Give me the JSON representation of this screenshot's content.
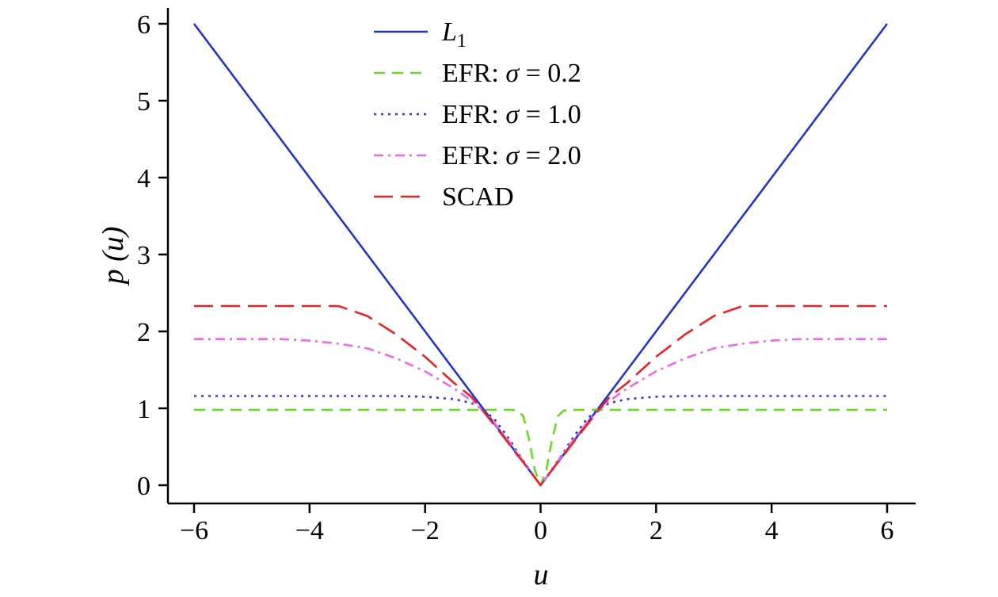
{
  "chart_data": {
    "type": "line",
    "xlabel": "u",
    "ylabel": "p (u)",
    "xlim": [
      -6.45,
      6.45
    ],
    "ylim": [
      -0.25,
      6.25
    ],
    "xticks": [
      -6,
      -4,
      -2,
      0,
      2,
      4,
      6
    ],
    "yticks": [
      0,
      1,
      2,
      3,
      4,
      5,
      6
    ],
    "xtick_labels": [
      "−6",
      "−4",
      "−2",
      "0",
      "2",
      "4",
      "6"
    ],
    "ytick_labels": [
      "0",
      "1",
      "2",
      "3",
      "4",
      "5",
      "6"
    ],
    "grid": false,
    "legend_position": "top-center",
    "x": [
      -6.0,
      -5.5,
      -5.0,
      -4.5,
      -4.0,
      -3.5,
      -3.0,
      -2.5,
      -2.0,
      -1.5,
      -1.2,
      -1.0,
      -0.8,
      -0.6,
      -0.5,
      -0.4,
      -0.3,
      -0.2,
      -0.1,
      0.0,
      0.1,
      0.2,
      0.3,
      0.4,
      0.5,
      0.6,
      0.8,
      1.0,
      1.2,
      1.5,
      2.0,
      2.5,
      3.0,
      3.5,
      4.0,
      4.5,
      5.0,
      5.5,
      6.0
    ],
    "series": [
      {
        "name": "L1",
        "legend_label": "L",
        "legend_sub": "1",
        "color": "#2233cc",
        "style": "solid",
        "values": [
          6.0,
          5.5,
          5.0,
          4.5,
          4.0,
          3.5,
          3.0,
          2.5,
          2.0,
          1.5,
          1.2,
          1.0,
          0.8,
          0.6,
          0.5,
          0.4,
          0.3,
          0.2,
          0.1,
          0.0,
          0.1,
          0.2,
          0.3,
          0.4,
          0.5,
          0.6,
          0.8,
          1.0,
          1.2,
          1.5,
          2.0,
          2.5,
          3.0,
          3.5,
          4.0,
          4.5,
          5.0,
          5.5,
          6.0
        ]
      },
      {
        "name": "EFR: σ = 0.2",
        "legend_prefix": "EFR: ",
        "legend_sigma": "σ",
        "legend_suffix": " = 0.2",
        "color": "#66dd22",
        "style": "dashed",
        "values": [
          0.98,
          0.98,
          0.98,
          0.98,
          0.98,
          0.98,
          0.98,
          0.98,
          0.98,
          0.98,
          0.98,
          0.98,
          0.98,
          0.98,
          0.98,
          0.97,
          0.9,
          0.6,
          0.2,
          0.0,
          0.2,
          0.6,
          0.9,
          0.97,
          0.98,
          0.98,
          0.98,
          0.98,
          0.98,
          0.98,
          0.98,
          0.98,
          0.98,
          0.98,
          0.98,
          0.98,
          0.98,
          0.98,
          0.98
        ]
      },
      {
        "name": "EFR: σ = 1.0",
        "legend_prefix": "EFR: ",
        "legend_sigma": "σ",
        "legend_suffix": " = 1.0",
        "color": "#3333ee",
        "style": "dotted",
        "values": [
          1.16,
          1.16,
          1.16,
          1.16,
          1.16,
          1.16,
          1.16,
          1.16,
          1.15,
          1.12,
          1.07,
          0.99,
          0.86,
          0.66,
          0.55,
          0.43,
          0.32,
          0.21,
          0.1,
          0.0,
          0.1,
          0.21,
          0.32,
          0.43,
          0.55,
          0.66,
          0.86,
          0.99,
          1.07,
          1.12,
          1.15,
          1.16,
          1.16,
          1.16,
          1.16,
          1.16,
          1.16,
          1.16,
          1.16
        ]
      },
      {
        "name": "EFR: σ = 2.0",
        "legend_prefix": "EFR: ",
        "legend_sigma": "σ",
        "legend_suffix": " = 2.0",
        "color": "#ee66ee",
        "style": "dashdot",
        "values": [
          1.9,
          1.9,
          1.9,
          1.9,
          1.88,
          1.84,
          1.78,
          1.65,
          1.48,
          1.26,
          1.1,
          0.97,
          0.81,
          0.62,
          0.52,
          0.42,
          0.31,
          0.21,
          0.1,
          0.0,
          0.1,
          0.21,
          0.31,
          0.42,
          0.52,
          0.62,
          0.81,
          0.97,
          1.1,
          1.26,
          1.48,
          1.65,
          1.78,
          1.84,
          1.88,
          1.9,
          1.9,
          1.9,
          1.9
        ]
      },
      {
        "name": "SCAD",
        "legend_prefix": "SCAD",
        "legend_sigma": "",
        "legend_suffix": "",
        "color": "#ee2222",
        "style": "longdash",
        "values": [
          2.33,
          2.33,
          2.33,
          2.33,
          2.33,
          2.33,
          2.2,
          1.96,
          1.67,
          1.33,
          1.15,
          0.97,
          0.78,
          0.59,
          0.49,
          0.39,
          0.3,
          0.2,
          0.1,
          0.0,
          0.1,
          0.2,
          0.3,
          0.39,
          0.49,
          0.59,
          0.78,
          0.97,
          1.15,
          1.33,
          1.67,
          1.96,
          2.2,
          2.33,
          2.33,
          2.33,
          2.33,
          2.33,
          2.33
        ]
      }
    ]
  }
}
